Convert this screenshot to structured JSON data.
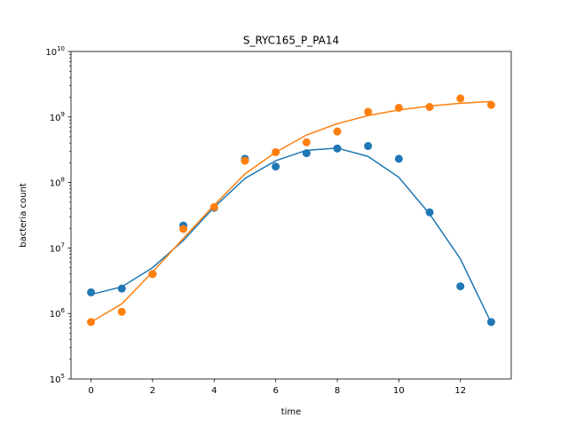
{
  "chart_data": {
    "type": "scatter",
    "title": "S_RYC165_P_PA14",
    "xlabel": "time",
    "ylabel": "bacteria count",
    "xlim": [
      -0.65,
      13.65
    ],
    "ylim": [
      100000,
      10000000000
    ],
    "yscale": "log",
    "grid": false,
    "x_ticks": [
      0,
      2,
      4,
      6,
      8,
      10,
      12
    ],
    "y_ticks": [
      {
        "value": 100000,
        "base": "10",
        "exp": "5"
      },
      {
        "value": 1000000,
        "base": "10",
        "exp": "6"
      },
      {
        "value": 10000000,
        "base": "10",
        "exp": "7"
      },
      {
        "value": 100000000,
        "base": "10",
        "exp": "8"
      },
      {
        "value": 1000000000,
        "base": "10",
        "exp": "9"
      },
      {
        "value": 10000000000,
        "base": "10",
        "exp": "10"
      }
    ],
    "series": [
      {
        "color": "#1f77b4",
        "x": [
          0,
          1,
          2,
          3,
          4,
          5,
          6,
          7,
          8,
          9,
          10,
          11,
          12,
          13
        ],
        "points": [
          2100000,
          2400000,
          4000000,
          22000000,
          41000000,
          230000000,
          175000000,
          280000000,
          330000000,
          360000000,
          230000000,
          35000000,
          2600000,
          740000
        ],
        "fit": [
          1950000,
          2550000,
          5000000,
          13000000,
          42000000,
          115000000,
          215000000,
          310000000,
          335000000,
          250000000,
          120000000,
          33000000,
          6800000,
          720000
        ]
      },
      {
        "color": "#ff7f0e",
        "x": [
          0,
          1,
          2,
          3,
          4,
          5,
          6,
          7,
          8,
          9,
          10,
          11,
          12,
          13
        ],
        "points": [
          740000,
          1060000,
          4000000,
          19500000,
          42000000,
          215000000,
          290000000,
          410000000,
          600000000,
          1200000000,
          1380000000,
          1420000000,
          1920000000,
          1530000000
        ],
        "fit": [
          740000,
          1400000,
          4300000,
          14000000,
          45000000,
          135000000,
          290000000,
          530000000,
          790000000,
          1050000000,
          1280000000,
          1470000000,
          1620000000,
          1720000000
        ]
      }
    ]
  }
}
